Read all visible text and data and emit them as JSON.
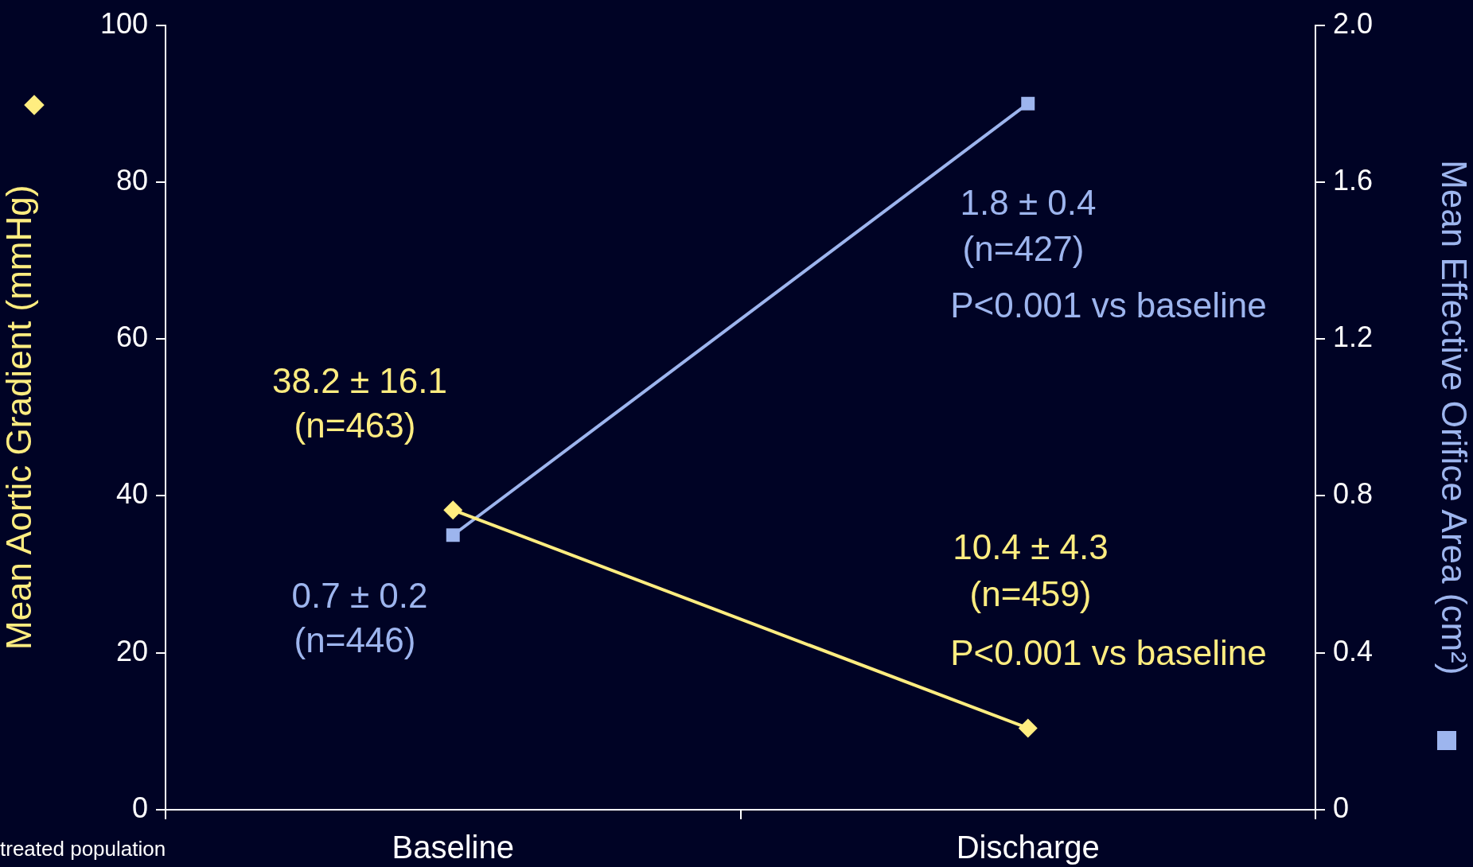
{
  "chart_data": {
    "type": "line",
    "categories": [
      "Baseline",
      "Discharge"
    ],
    "series": [
      {
        "color": "#ffed80",
        "values": [
          38.2,
          10.4
        ],
        "marker": "diamond",
        "axis": "y"
      },
      {
        "color": "#9db5ee",
        "values": [
          0.7,
          1.8
        ],
        "marker": "square",
        "axis": "y2"
      }
    ],
    "ylabel": "Mean Aortic Gradient (mmHg)",
    "y2label": "Mean Effective Orifice Area (cm²)",
    "ylim": [
      0,
      100
    ],
    "yticks": [
      0,
      20,
      40,
      60,
      80,
      100
    ],
    "y2lim": [
      0,
      2.0
    ],
    "y2ticks": [
      {
        "value": 0,
        "label": "0"
      },
      {
        "value": 0.4,
        "label": "0.4"
      },
      {
        "value": 0.8,
        "label": "0.8"
      },
      {
        "value": 1.2,
        "label": "1.2"
      },
      {
        "value": 1.6,
        "label": "1.6"
      },
      {
        "value": 2.0,
        "label": "2.0"
      }
    ],
    "grid": false,
    "legend": false,
    "line_style": "solid",
    "annotations": [
      "38.2 ± 16.1",
      "(n=463)",
      "0.7 ± 0.2",
      "(n=446)",
      "1.8 ± 0.4",
      "(n=427)",
      "P<0.001 vs baseline",
      "10.4 ± 4.3",
      "(n=459)",
      "P<0.001 vs baseline",
      "treated population"
    ]
  }
}
